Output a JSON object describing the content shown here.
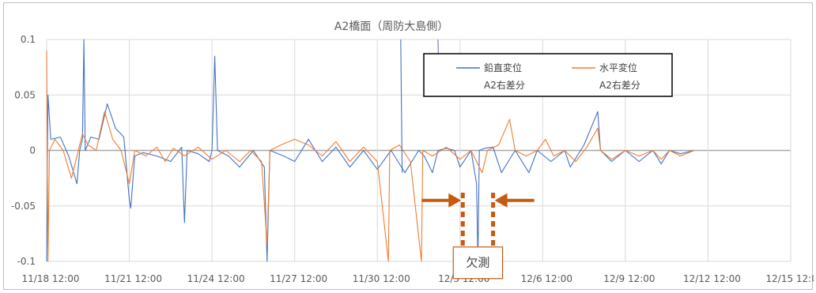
{
  "chart_data": {
    "type": "line",
    "title": "A2橋面（周防大島側）",
    "xlabel": "",
    "ylabel": "",
    "ylim": [
      -0.1,
      0.1
    ],
    "yticks": [
      0.1,
      0.05,
      0,
      -0.05,
      -0.1
    ],
    "ytick_labels": [
      "0.1",
      "0.05",
      "0",
      "-0.05",
      "-0.1"
    ],
    "xlim": [
      0,
      27
    ],
    "xticks": [
      0,
      3,
      6,
      9,
      12,
      15,
      18,
      21,
      24,
      27
    ],
    "xtick_labels": [
      "11/18 12:00",
      "11/21 12:00",
      "11/24 12:00",
      "11/27 12:00",
      "11/30 12:00",
      "12/3 12:00",
      "12/6 12:00",
      "12/9 12:00",
      "12/12 12:00",
      "12/15 12:00"
    ],
    "grid": true,
    "legend_position": "top-right",
    "series": [
      {
        "name_line1": "鉛直変位",
        "name_line2": "A2右差分",
        "color": "#4472c4",
        "points": [
          [
            0,
            -0.1
          ],
          [
            0.05,
            0.05
          ],
          [
            0.15,
            0.01
          ],
          [
            0.5,
            0.012
          ],
          [
            0.8,
            -0.005
          ],
          [
            1.1,
            -0.03
          ],
          [
            1.2,
            0.0
          ],
          [
            1.3,
            0.01
          ],
          [
            1.35,
            0.1
          ],
          [
            1.4,
            0.0
          ],
          [
            1.6,
            0.012
          ],
          [
            1.9,
            0.01
          ],
          [
            2.2,
            0.042
          ],
          [
            2.5,
            0.02
          ],
          [
            2.8,
            0.012
          ],
          [
            3.0,
            -0.045
          ],
          [
            3.05,
            -0.052
          ],
          [
            3.2,
            -0.005
          ],
          [
            3.5,
            -0.002
          ],
          [
            4.0,
            -0.005
          ],
          [
            4.5,
            -0.01
          ],
          [
            4.9,
            0.003
          ],
          [
            5.0,
            -0.065
          ],
          [
            5.1,
            0.0
          ],
          [
            5.5,
            -0.003
          ],
          [
            5.9,
            -0.01
          ],
          [
            6.0,
            0.0
          ],
          [
            6.1,
            0.085
          ],
          [
            6.2,
            0.0
          ],
          [
            6.6,
            -0.005
          ],
          [
            7.0,
            -0.015
          ],
          [
            7.5,
            0.0
          ],
          [
            7.9,
            -0.015
          ],
          [
            8.0,
            -0.1
          ],
          [
            8.1,
            0.0
          ],
          [
            8.6,
            -0.005
          ],
          [
            9.0,
            -0.01
          ],
          [
            9.5,
            0.01
          ],
          [
            10.0,
            -0.01
          ],
          [
            10.5,
            0.003
          ],
          [
            11.0,
            -0.015
          ],
          [
            11.5,
            0.0
          ],
          [
            12.0,
            -0.017
          ],
          [
            12.5,
            0.0
          ],
          [
            13.0,
            -0.02
          ],
          [
            13.5,
            0.0
          ],
          [
            13.7,
            -0.005
          ],
          [
            14.0,
            -0.02
          ],
          [
            14.2,
            0.0
          ],
          [
            14.5,
            0.002
          ],
          [
            14.8,
            0.0
          ],
          [
            15.0,
            -0.015
          ],
          [
            15.4,
            0.0
          ],
          [
            15.6,
            -0.03
          ],
          [
            15.65,
            -0.1
          ],
          [
            15.7,
            0.0
          ],
          [
            15.9,
            0.002
          ],
          [
            16.2,
            0.003
          ],
          [
            16.5,
            -0.02
          ],
          [
            17.0,
            0.0
          ],
          [
            17.5,
            -0.02
          ],
          [
            17.8,
            0.0
          ],
          [
            18.3,
            -0.01
          ],
          [
            18.8,
            0.0
          ],
          [
            19.0,
            -0.015
          ],
          [
            19.5,
            0.005
          ],
          [
            20.0,
            0.035
          ],
          [
            20.1,
            0.0
          ],
          [
            20.5,
            -0.01
          ],
          [
            21.0,
            0.0
          ],
          [
            21.5,
            -0.01
          ],
          [
            22.0,
            0.0
          ],
          [
            22.3,
            -0.012
          ],
          [
            22.6,
            0.0
          ],
          [
            23.0,
            -0.003
          ],
          [
            23.5,
            0.0
          ]
        ]
      },
      {
        "name_line1": "水平変位",
        "name_line2": "A2右差分",
        "color": "#ed7d31",
        "points": [
          [
            0,
            0.09
          ],
          [
            0.05,
            -0.1
          ],
          [
            0.1,
            0.0
          ],
          [
            0.3,
            0.01
          ],
          [
            0.6,
            0.0
          ],
          [
            0.9,
            -0.025
          ],
          [
            1.1,
            -0.005
          ],
          [
            1.3,
            0.015
          ],
          [
            1.5,
            0.005
          ],
          [
            1.8,
            0.0
          ],
          [
            2.1,
            0.035
          ],
          [
            2.4,
            0.01
          ],
          [
            2.7,
            0.0
          ],
          [
            2.9,
            -0.02
          ],
          [
            3.0,
            -0.03
          ],
          [
            3.2,
            0.0
          ],
          [
            3.6,
            -0.005
          ],
          [
            4.0,
            0.003
          ],
          [
            4.3,
            -0.01
          ],
          [
            4.6,
            0.002
          ],
          [
            5.0,
            -0.005
          ],
          [
            5.5,
            0.003
          ],
          [
            6.0,
            -0.008
          ],
          [
            6.5,
            0.0
          ],
          [
            7.0,
            -0.01
          ],
          [
            7.4,
            0.0
          ],
          [
            7.8,
            -0.01
          ],
          [
            8.0,
            -0.085
          ],
          [
            8.1,
            0.0
          ],
          [
            8.5,
            0.005
          ],
          [
            9.0,
            0.01
          ],
          [
            9.5,
            0.005
          ],
          [
            10.0,
            -0.005
          ],
          [
            10.5,
            0.008
          ],
          [
            11.0,
            -0.01
          ],
          [
            11.5,
            0.003
          ],
          [
            12.0,
            -0.01
          ],
          [
            12.4,
            -0.1
          ],
          [
            12.45,
            0.0
          ],
          [
            12.8,
            0.005
          ],
          [
            13.2,
            -0.01
          ],
          [
            13.6,
            -0.1
          ],
          [
            13.65,
            0.0
          ],
          [
            14.0,
            -0.005
          ],
          [
            14.5,
            0.003
          ],
          [
            15.0,
            -0.008
          ],
          [
            15.4,
            0.0
          ],
          [
            15.8,
            -0.02
          ],
          [
            16.0,
            0.0
          ],
          [
            16.4,
            0.005
          ],
          [
            16.8,
            0.028
          ],
          [
            17.0,
            0.0
          ],
          [
            17.4,
            -0.005
          ],
          [
            17.8,
            0.0
          ],
          [
            18.1,
            0.01
          ],
          [
            18.4,
            -0.005
          ],
          [
            18.8,
            0.0
          ],
          [
            19.2,
            -0.01
          ],
          [
            19.6,
            0.003
          ],
          [
            20.0,
            0.02
          ],
          [
            20.1,
            0.0
          ],
          [
            20.5,
            -0.008
          ],
          [
            21.0,
            0.0
          ],
          [
            21.5,
            -0.005
          ],
          [
            22.0,
            0.0
          ],
          [
            22.3,
            -0.008
          ],
          [
            22.6,
            0.0
          ],
          [
            23.0,
            -0.005
          ],
          [
            23.5,
            0.0
          ]
        ]
      }
    ],
    "extra_lines": [
      {
        "color": "#4472c4",
        "points": [
          [
            12.85,
            0.1
          ],
          [
            12.9,
            -0.02
          ]
        ]
      },
      {
        "color": "#7f6aa6",
        "points": [
          [
            14.2,
            0.1
          ],
          [
            14.25,
            0.05
          ]
        ]
      }
    ],
    "annotation": {
      "label": "欠測",
      "gap_start": 15.1,
      "gap_end": 16.2,
      "arrow_color": "#c55a11"
    }
  }
}
